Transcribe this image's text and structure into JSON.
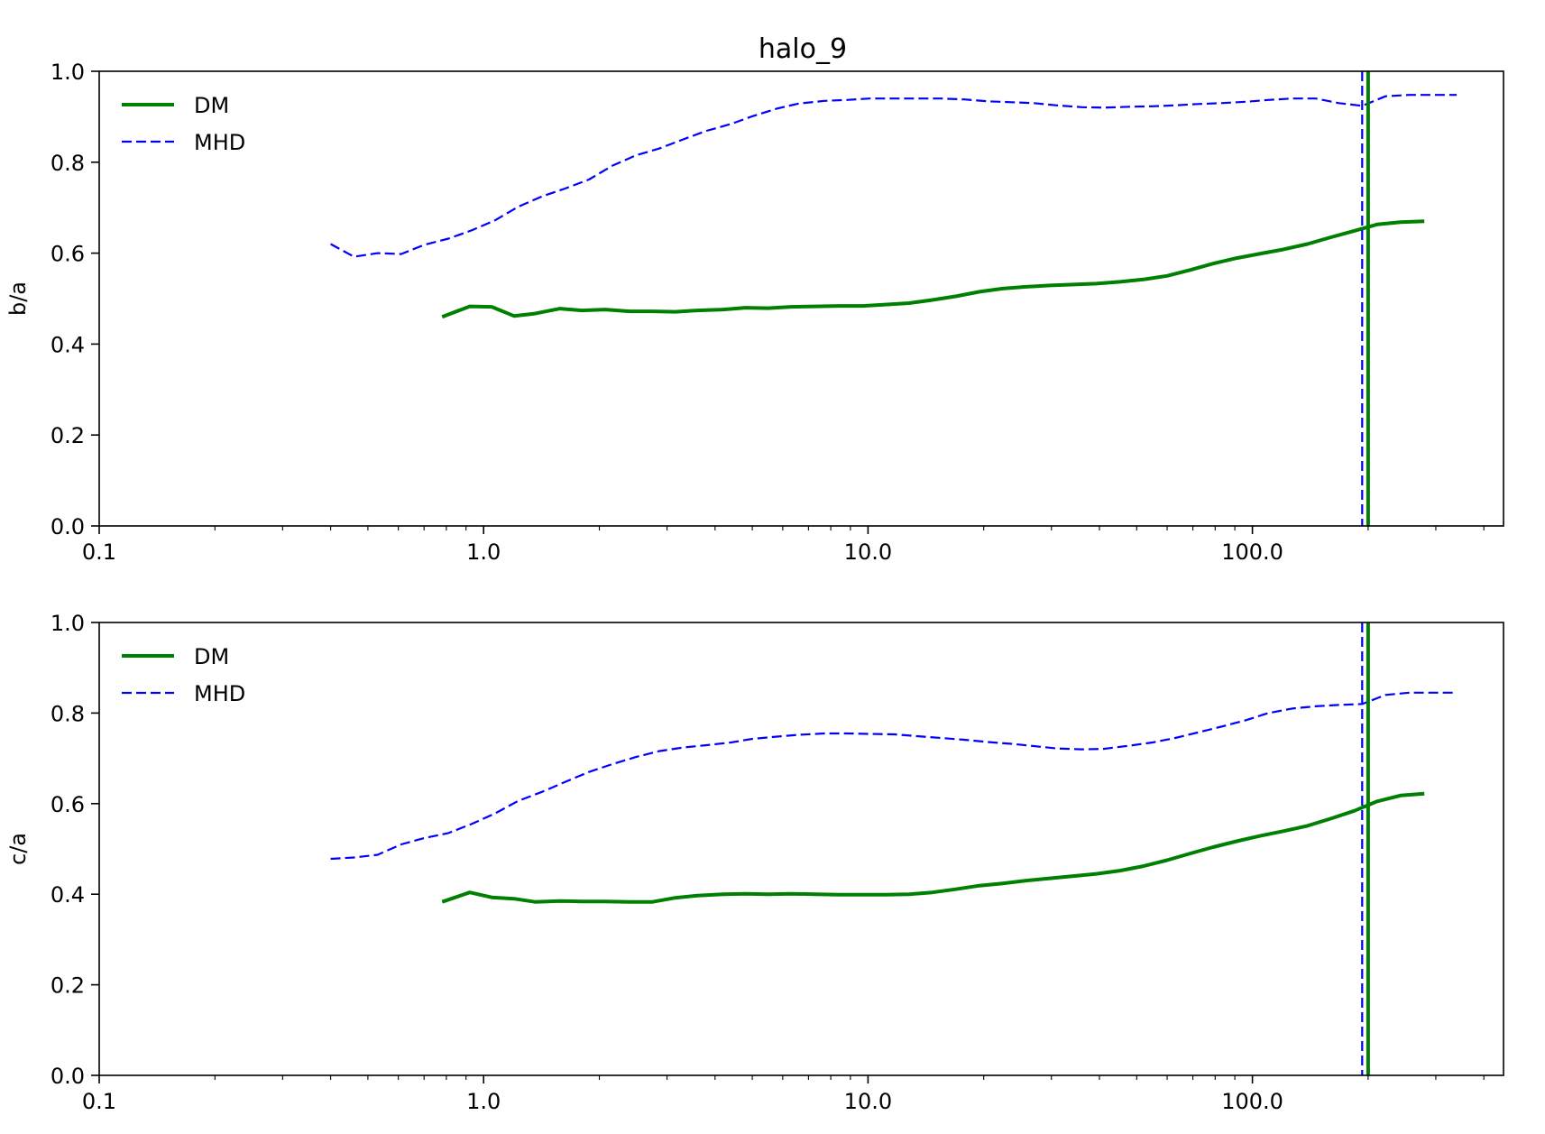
{
  "title": "halo_9",
  "colors": {
    "DM": "#008000",
    "MHD": "#0000ff"
  },
  "chart_data": [
    {
      "type": "line",
      "title": "halo_9",
      "xlabel": "",
      "ylabel": "b/a",
      "xscale": "log",
      "xlim": [
        0.1,
        450
      ],
      "ylim": [
        0.0,
        1.0
      ],
      "xticks": [
        "0.1",
        "1.0",
        "10.0",
        "100.0"
      ],
      "yticks": [
        "0.0",
        "0.2",
        "0.4",
        "0.6",
        "0.8",
        "1.0"
      ],
      "legend": "top-left",
      "grid": false,
      "series": [
        {
          "name": "DM",
          "style": "solid",
          "x": [
            0.78,
            0.92,
            1.05,
            1.2,
            1.36,
            1.58,
            1.8,
            2.07,
            2.4,
            2.75,
            3.15,
            3.6,
            4.2,
            4.8,
            5.5,
            6.3,
            7.3,
            8.4,
            9.7,
            11.1,
            12.8,
            14.7,
            16.9,
            19.5,
            22.4,
            25.8,
            29.7,
            34.2,
            39.3,
            45.2,
            52,
            60,
            69,
            79,
            91,
            105,
            120,
            139,
            160,
            184,
            211,
            243,
            280
          ],
          "y": [
            0.46,
            0.483,
            0.482,
            0.462,
            0.467,
            0.478,
            0.474,
            0.476,
            0.472,
            0.472,
            0.471,
            0.474,
            0.476,
            0.48,
            0.479,
            0.482,
            0.483,
            0.484,
            0.484,
            0.487,
            0.49,
            0.497,
            0.505,
            0.515,
            0.522,
            0.526,
            0.529,
            0.531,
            0.533,
            0.537,
            0.542,
            0.55,
            0.563,
            0.577,
            0.589,
            0.599,
            0.608,
            0.62,
            0.635,
            0.649,
            0.663,
            0.668,
            0.67
          ]
        },
        {
          "name": "MHD",
          "style": "dashed",
          "x": [
            0.4,
            0.46,
            0.53,
            0.61,
            0.7,
            0.81,
            0.93,
            1.07,
            1.23,
            1.42,
            1.63,
            1.88,
            2.16,
            2.49,
            2.86,
            3.3,
            3.8,
            4.4,
            5.0,
            5.8,
            6.6,
            7.7,
            8.8,
            10.1,
            11.7,
            13.4,
            15.5,
            17.8,
            20.5,
            23.6,
            27,
            31,
            36,
            41,
            48,
            55,
            63,
            72,
            83,
            96,
            110,
            127,
            146,
            168,
            193,
            222,
            256,
            294,
            340
          ],
          "y": [
            0.62,
            0.592,
            0.6,
            0.598,
            0.618,
            0.632,
            0.65,
            0.672,
            0.702,
            0.725,
            0.742,
            0.762,
            0.792,
            0.815,
            0.83,
            0.85,
            0.869,
            0.884,
            0.901,
            0.918,
            0.929,
            0.935,
            0.937,
            0.94,
            0.94,
            0.94,
            0.94,
            0.938,
            0.934,
            0.932,
            0.93,
            0.925,
            0.921,
            0.92,
            0.922,
            0.923,
            0.925,
            0.928,
            0.93,
            0.933,
            0.937,
            0.94,
            0.94,
            0.93,
            0.924,
            0.945,
            0.948,
            0.948,
            0.948
          ]
        }
      ],
      "vlines": [
        {
          "series": "MHD",
          "x": 193
        },
        {
          "series": "DM",
          "x": 200
        }
      ]
    },
    {
      "type": "line",
      "xlabel": "",
      "ylabel": "c/a",
      "xscale": "log",
      "xlim": [
        0.1,
        450
      ],
      "ylim": [
        0.0,
        1.0
      ],
      "xticks": [
        "0.1",
        "1.0",
        "10.0",
        "100.0"
      ],
      "yticks": [
        "0.0",
        "0.2",
        "0.4",
        "0.6",
        "0.8",
        "1.0"
      ],
      "legend": "top-left",
      "grid": false,
      "series": [
        {
          "name": "DM",
          "style": "solid",
          "x": [
            0.78,
            0.92,
            1.05,
            1.2,
            1.36,
            1.58,
            1.8,
            2.07,
            2.4,
            2.75,
            3.15,
            3.6,
            4.2,
            4.8,
            5.5,
            6.3,
            7.3,
            8.4,
            9.7,
            11.1,
            12.8,
            14.7,
            16.9,
            19.5,
            22.4,
            25.8,
            29.7,
            34.2,
            39.3,
            45.2,
            52,
            60,
            69,
            79,
            91,
            105,
            120,
            139,
            160,
            184,
            211,
            243,
            280
          ],
          "y": [
            0.383,
            0.404,
            0.393,
            0.39,
            0.383,
            0.385,
            0.384,
            0.384,
            0.383,
            0.383,
            0.392,
            0.397,
            0.4,
            0.401,
            0.4,
            0.401,
            0.4,
            0.399,
            0.399,
            0.399,
            0.4,
            0.404,
            0.411,
            0.419,
            0.424,
            0.43,
            0.435,
            0.44,
            0.445,
            0.452,
            0.462,
            0.475,
            0.49,
            0.504,
            0.517,
            0.529,
            0.539,
            0.551,
            0.567,
            0.584,
            0.605,
            0.618,
            0.622
          ]
        },
        {
          "name": "MHD",
          "style": "dashed",
          "x": [
            0.4,
            0.46,
            0.53,
            0.61,
            0.7,
            0.81,
            0.93,
            1.07,
            1.23,
            1.42,
            1.63,
            1.88,
            2.16,
            2.49,
            2.86,
            3.3,
            3.8,
            4.4,
            5.0,
            5.8,
            6.6,
            7.7,
            8.8,
            10.1,
            11.7,
            13.4,
            15.5,
            17.8,
            20.5,
            23.6,
            27,
            31,
            36,
            41,
            48,
            55,
            63,
            72,
            83,
            96,
            110,
            127,
            146,
            168,
            193,
            222,
            256,
            294,
            340
          ],
          "y": [
            0.478,
            0.481,
            0.487,
            0.51,
            0.524,
            0.535,
            0.555,
            0.578,
            0.606,
            0.626,
            0.648,
            0.67,
            0.687,
            0.703,
            0.716,
            0.724,
            0.729,
            0.735,
            0.743,
            0.748,
            0.752,
            0.755,
            0.755,
            0.754,
            0.753,
            0.749,
            0.745,
            0.741,
            0.736,
            0.732,
            0.727,
            0.722,
            0.72,
            0.721,
            0.728,
            0.735,
            0.745,
            0.757,
            0.77,
            0.784,
            0.8,
            0.81,
            0.815,
            0.818,
            0.82,
            0.84,
            0.845,
            0.845,
            0.845
          ]
        }
      ],
      "vlines": [
        {
          "series": "MHD",
          "x": 193
        },
        {
          "series": "DM",
          "x": 200
        }
      ]
    }
  ]
}
